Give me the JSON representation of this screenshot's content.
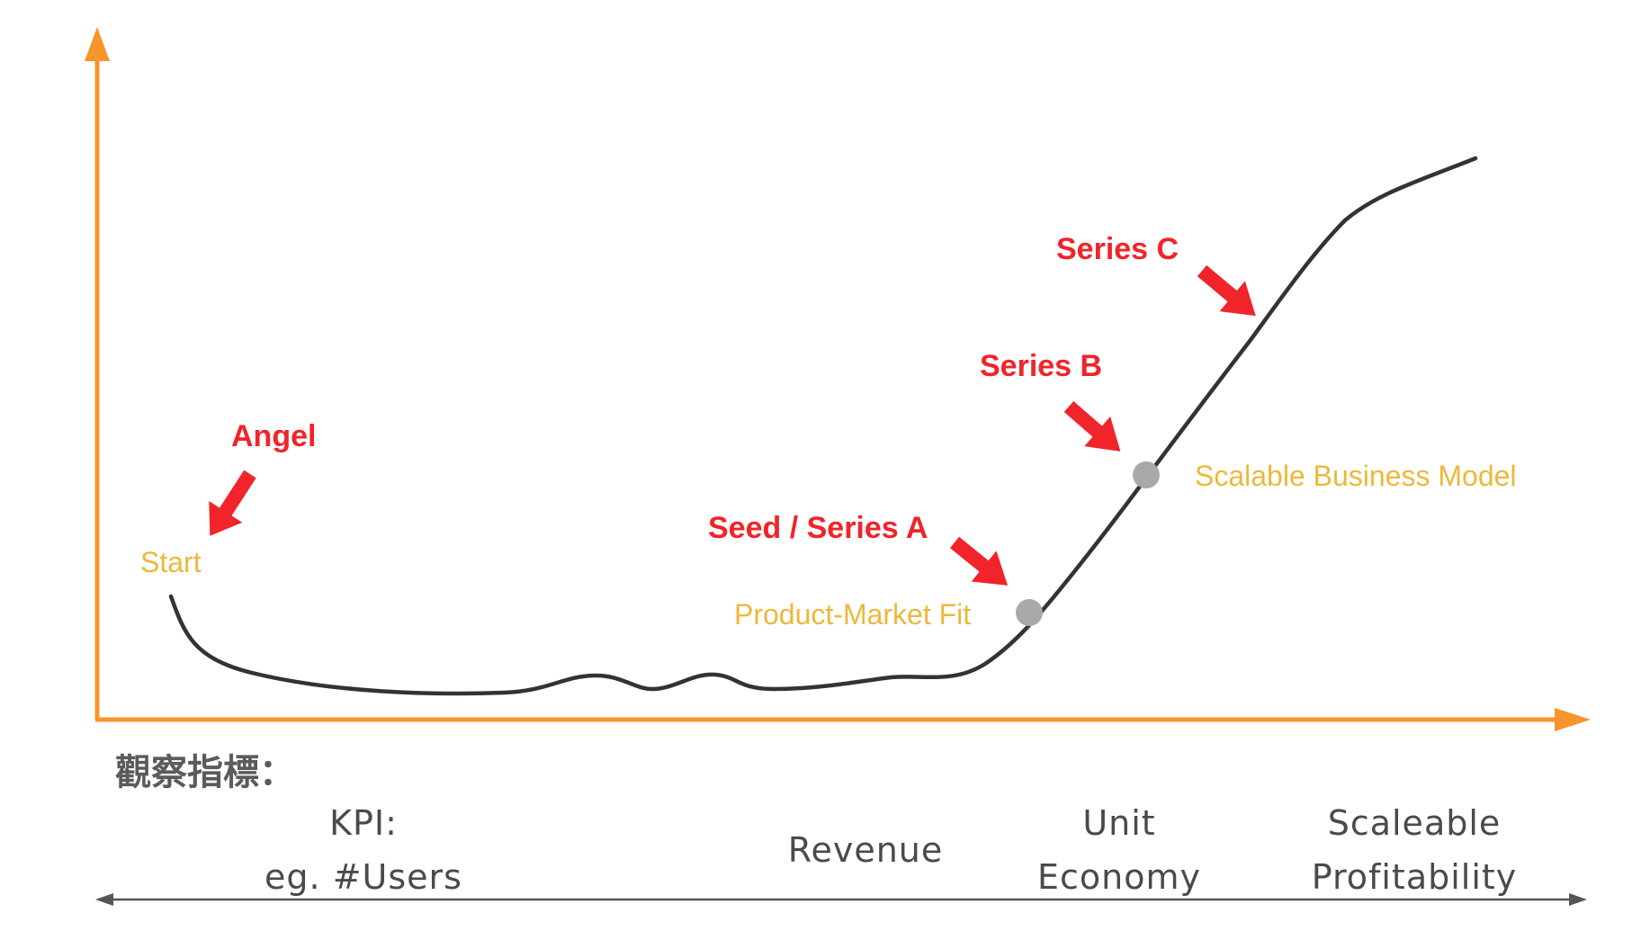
{
  "colors": {
    "axis": "#f7942b",
    "curve": "#333333",
    "funding": "#f0242a",
    "milestone": "#ecb83c",
    "dot": "#a9a9a9",
    "scale_line": "#555555"
  },
  "funding_stages": {
    "angel": "Angel",
    "seed_series_a": "Seed / Series A",
    "series_b": "Series B",
    "series_c": "Series C"
  },
  "milestones": {
    "start": "Start",
    "product_market_fit": "Product-Market Fit",
    "scalable_business_model": "Scalable Business Model"
  },
  "metrics": {
    "title": "觀察指標：",
    "kpi_line1": "KPI:",
    "kpi_line2": "eg. #Users",
    "revenue": "Revenue",
    "unit_line1": "Unit",
    "unit_line2": "Economy",
    "scale_line1": "Scaleable",
    "scale_line2": "Profitability"
  }
}
